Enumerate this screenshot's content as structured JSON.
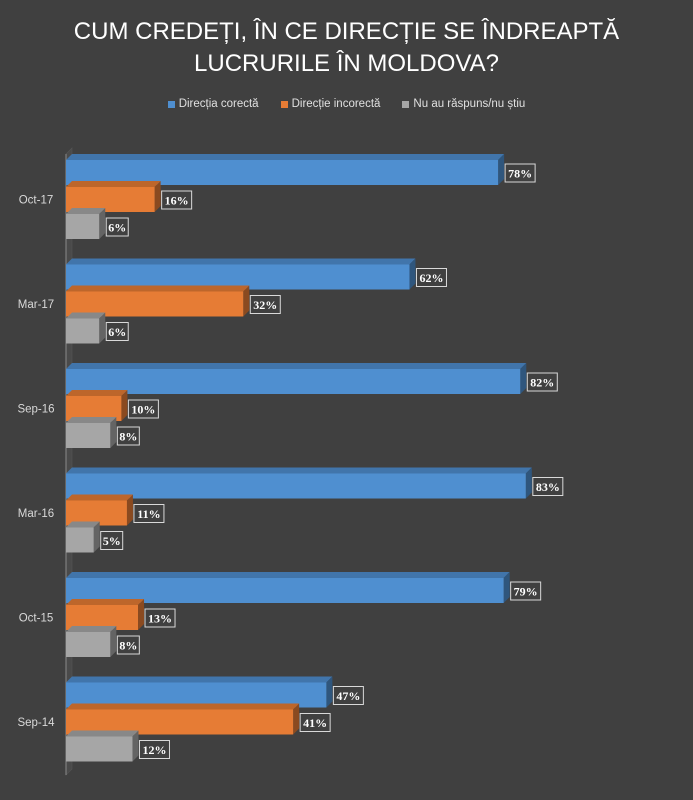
{
  "chart_data": {
    "type": "bar",
    "orientation": "horizontal",
    "title_lines": [
      "CUM CREDEȚI, ÎN CE DIRECȚIE SE ÎNDREAPTĂ",
      "LUCRURILE ÎN MOLDOVA?"
    ],
    "categories": [
      "Oct-17",
      "Mar-17",
      "Sep-16",
      "Mar-16",
      "Oct-15",
      "Sep-14"
    ],
    "series": [
      {
        "name": "Direcția corectă",
        "color": "#4f8fd0",
        "values": [
          78,
          62,
          82,
          83,
          79,
          47
        ]
      },
      {
        "name": "Direcție incorectă",
        "color": "#e67c35",
        "values": [
          16,
          32,
          10,
          11,
          13,
          41
        ]
      },
      {
        "name": "Nu au răspuns/nu știu",
        "color": "#a6a6a6",
        "values": [
          6,
          6,
          8,
          5,
          8,
          12
        ]
      }
    ],
    "value_suffix": "%",
    "xlim": [
      0,
      100
    ],
    "legend_position": "top",
    "grid": false,
    "style": "3d"
  }
}
